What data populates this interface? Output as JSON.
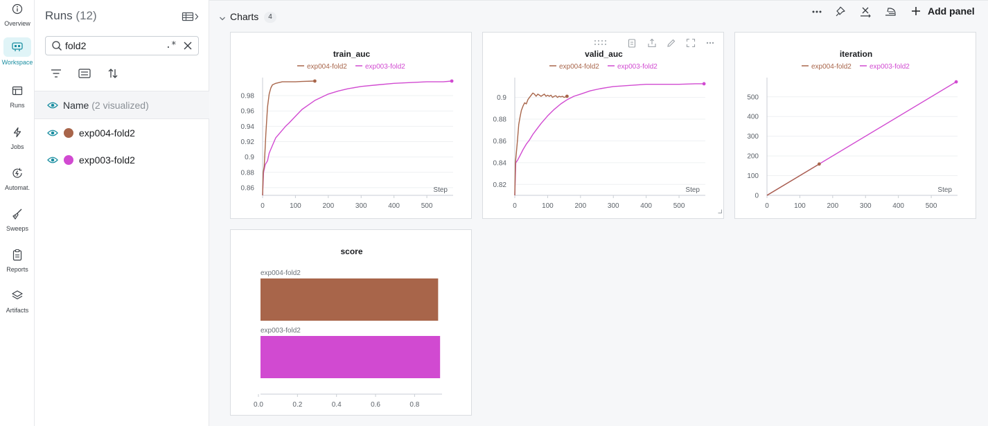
{
  "nav": {
    "items": [
      {
        "label": "Overview",
        "icon": "info-icon"
      },
      {
        "label": "Workspace",
        "icon": "workspace-icon",
        "active": true
      },
      {
        "label": "Runs",
        "icon": "table-icon"
      },
      {
        "label": "Jobs",
        "icon": "lightning-icon"
      },
      {
        "label": "Automat.",
        "icon": "automation-icon"
      },
      {
        "label": "Sweeps",
        "icon": "broom-icon"
      },
      {
        "label": "Reports",
        "icon": "clipboard-icon"
      },
      {
        "label": "Artifacts",
        "icon": "layers-icon"
      }
    ]
  },
  "runs_panel": {
    "title": "Runs",
    "count": "(12)",
    "search": {
      "value": "fold2",
      "regex_label": ".*"
    },
    "name_header": {
      "label": "Name",
      "visualized": "(2 visualized)"
    },
    "runs": [
      {
        "name": "exp004-fold2",
        "color": "#a8654a"
      },
      {
        "name": "exp003-fold2",
        "color": "#d14ad1"
      }
    ]
  },
  "section": {
    "title": "Charts",
    "count": "4",
    "add_panel_label": "Add panel"
  },
  "colors": {
    "exp004": "#a8654a",
    "exp003": "#d14ad1",
    "accent": "#1a8ea1"
  },
  "chart_data": [
    {
      "type": "line",
      "title": "train_auc",
      "xlabel": "Step",
      "xlim": [
        0,
        580
      ],
      "ylim": [
        0.85,
        0.999
      ],
      "xticks": [
        0,
        100,
        200,
        300,
        400,
        500
      ],
      "yticks": [
        0.86,
        0.88,
        0.9,
        0.92,
        0.94,
        0.96,
        0.98
      ],
      "ytick_labels": [
        "0.86",
        "0.88",
        "0.9",
        "0.92",
        "0.94",
        "0.96",
        "0.98"
      ],
      "series": [
        {
          "name": "exp004-fold2",
          "color": "#a8654a",
          "x": [
            0,
            2,
            5,
            10,
            15,
            20,
            25,
            30,
            40,
            50,
            60,
            80,
            100,
            120,
            159
          ],
          "y": [
            0.85,
            0.88,
            0.888,
            0.93,
            0.965,
            0.982,
            0.99,
            0.994,
            0.996,
            0.997,
            0.998,
            0.998,
            0.998,
            0.9985,
            0.999
          ]
        },
        {
          "name": "exp003-fold2",
          "color": "#d14ad1",
          "x": [
            0,
            3,
            8,
            15,
            20,
            30,
            40,
            50,
            60,
            70,
            80,
            100,
            120,
            140,
            160,
            180,
            200,
            230,
            260,
            300,
            350,
            400,
            450,
            500,
            550,
            576
          ],
          "y": [
            0.85,
            0.88,
            0.89,
            0.895,
            0.905,
            0.915,
            0.925,
            0.93,
            0.935,
            0.94,
            0.944,
            0.953,
            0.962,
            0.968,
            0.974,
            0.978,
            0.982,
            0.986,
            0.989,
            0.992,
            0.994,
            0.996,
            0.997,
            0.998,
            0.998,
            0.999
          ]
        }
      ],
      "markers": [
        {
          "series": 0,
          "x": 159,
          "y": 0.999
        },
        {
          "series": 1,
          "x": 576,
          "y": 0.999
        }
      ]
    },
    {
      "type": "line",
      "title": "valid_auc",
      "xlabel": "Step",
      "xlim": [
        0,
        580
      ],
      "ylim": [
        0.81,
        0.915
      ],
      "xticks": [
        0,
        100,
        200,
        300,
        400,
        500
      ],
      "yticks": [
        0.82,
        0.84,
        0.86,
        0.88,
        0.9
      ],
      "ytick_labels": [
        "0.82",
        "0.84",
        "0.86",
        "0.88",
        "0.9"
      ],
      "series": [
        {
          "name": "exp004-fold2",
          "color": "#a8654a",
          "x": [
            0,
            2,
            5,
            8,
            12,
            16,
            20,
            25,
            30,
            35,
            40,
            45,
            50,
            55,
            60,
            65,
            70,
            75,
            80,
            85,
            90,
            95,
            100,
            105,
            110,
            115,
            120,
            125,
            130,
            135,
            140,
            145,
            150,
            159
          ],
          "y": [
            0.81,
            0.84,
            0.85,
            0.86,
            0.875,
            0.882,
            0.888,
            0.892,
            0.895,
            0.894,
            0.898,
            0.9,
            0.902,
            0.904,
            0.903,
            0.901,
            0.903,
            0.902,
            0.901,
            0.902,
            0.903,
            0.901,
            0.902,
            0.901,
            0.902,
            0.9,
            0.901,
            0.9015,
            0.9,
            0.901,
            0.9005,
            0.901,
            0.9,
            0.901
          ]
        },
        {
          "name": "exp003-fold2",
          "color": "#d14ad1",
          "x": [
            0,
            3,
            8,
            15,
            25,
            35,
            45,
            55,
            65,
            80,
            100,
            120,
            140,
            160,
            180,
            200,
            230,
            260,
            300,
            350,
            400,
            450,
            500,
            550,
            576
          ],
          "y": [
            0.81,
            0.84,
            0.842,
            0.846,
            0.852,
            0.857,
            0.861,
            0.866,
            0.87,
            0.876,
            0.883,
            0.889,
            0.894,
            0.898,
            0.901,
            0.903,
            0.906,
            0.908,
            0.91,
            0.911,
            0.912,
            0.912,
            0.912,
            0.9125,
            0.9125
          ]
        }
      ],
      "markers": [
        {
          "series": 0,
          "x": 159,
          "y": 0.901
        },
        {
          "series": 1,
          "x": 576,
          "y": 0.9125
        }
      ]
    },
    {
      "type": "line",
      "title": "iteration",
      "xlabel": "Step",
      "xlim": [
        0,
        580
      ],
      "ylim": [
        0,
        580
      ],
      "xticks": [
        0,
        100,
        200,
        300,
        400,
        500
      ],
      "yticks": [
        0,
        100,
        200,
        300,
        400,
        500
      ],
      "ytick_labels": [
        "0",
        "100",
        "200",
        "300",
        "400",
        "500"
      ],
      "series": [
        {
          "name": "exp004-fold2",
          "color": "#a8654a",
          "x": [
            0,
            159
          ],
          "y": [
            0,
            159
          ]
        },
        {
          "name": "exp003-fold2",
          "color": "#d14ad1",
          "x": [
            0,
            576
          ],
          "y": [
            0,
            576
          ]
        }
      ],
      "markers": [
        {
          "series": 0,
          "x": 159,
          "y": 159
        },
        {
          "series": 1,
          "x": 576,
          "y": 576
        }
      ]
    },
    {
      "type": "bar",
      "title": "score",
      "orientation": "horizontal",
      "categories": [
        "exp004-fold2",
        "exp003-fold2"
      ],
      "values": [
        0.91,
        0.92
      ],
      "colors": [
        "#a8654a",
        "#d14ad1"
      ],
      "xlim": [
        0,
        0.93
      ],
      "xticks": [
        0,
        0.2,
        0.4,
        0.6,
        0.8
      ],
      "xtick_labels": [
        "0.0",
        "0.2",
        "0.4",
        "0.6",
        "0.8"
      ]
    }
  ]
}
